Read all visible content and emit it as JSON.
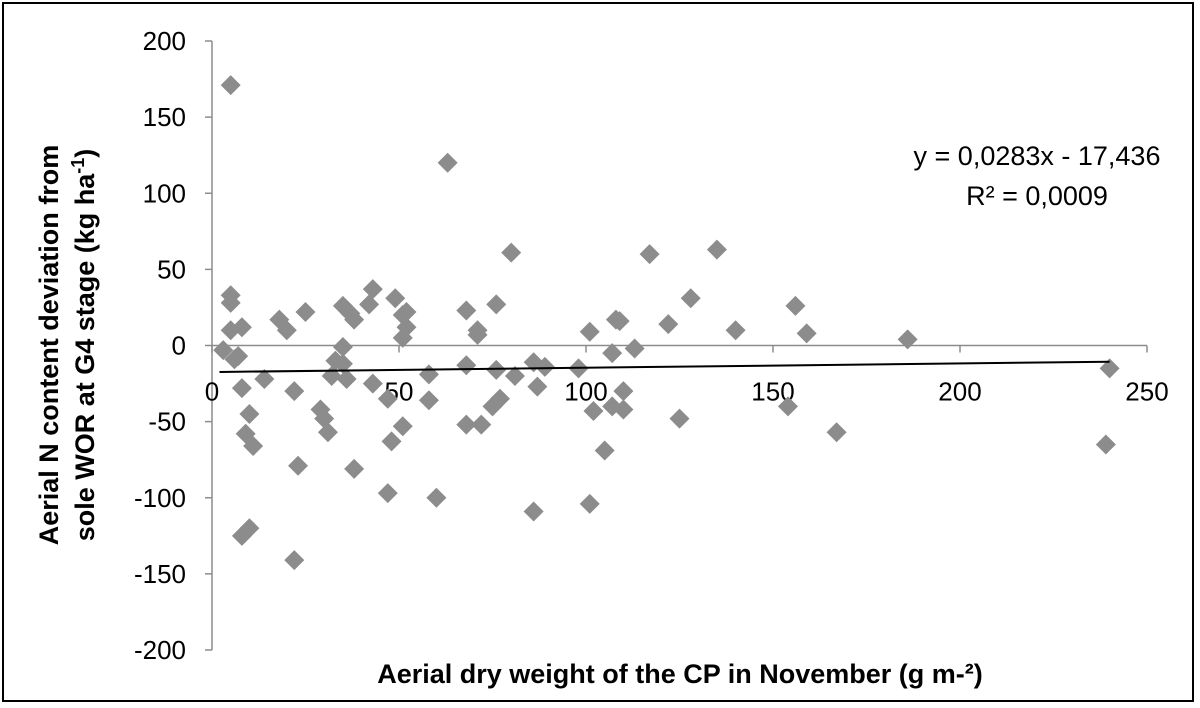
{
  "chart_data": {
    "type": "scatter",
    "title": "",
    "xlabel": "Aerial dry weight of the CP in November (g m-²)",
    "ylabel_line1": "Aerial N content deviation from",
    "ylabel_line2_prefix": "sole WOR at G4 stage (kg ha",
    "ylabel_line2_sup": "-1",
    "ylabel_line2_suffix": ")",
    "xlim": [
      0,
      250
    ],
    "ylim": [
      -200,
      200
    ],
    "x_ticks": [
      0,
      50,
      100,
      150,
      200,
      250
    ],
    "y_ticks": [
      200,
      150,
      100,
      50,
      0,
      -50,
      -100,
      -150,
      -200
    ],
    "x_tick_labels": [
      "0",
      "50",
      "100",
      "150",
      "200",
      "250"
    ],
    "y_tick_labels": [
      "200",
      "150",
      "100",
      "50",
      "0",
      "-50",
      "-100",
      "-150",
      "-200"
    ],
    "grid": false,
    "marker": "diamond",
    "marker_color": "#8c8c8c",
    "trendline": {
      "type": "linear",
      "slope": 0.0283,
      "intercept": -17.436,
      "x_range": [
        2,
        240
      ],
      "color": "#000000",
      "equation_text": "y = 0,0283x - 17,436",
      "r2_text": "R² = 0,0009"
    },
    "points": [
      [
        5,
        171
      ],
      [
        63,
        120
      ],
      [
        135,
        63
      ],
      [
        80,
        61
      ],
      [
        117,
        60
      ],
      [
        156,
        26
      ],
      [
        128,
        31
      ],
      [
        122,
        14
      ],
      [
        140,
        10
      ],
      [
        159,
        8
      ],
      [
        186,
        4
      ],
      [
        101,
        9
      ],
      [
        108,
        17
      ],
      [
        109,
        16
      ],
      [
        113,
        -2
      ],
      [
        107,
        -5
      ],
      [
        5,
        33
      ],
      [
        5,
        28
      ],
      [
        5,
        10
      ],
      [
        8,
        12
      ],
      [
        3,
        -3
      ],
      [
        6,
        -9
      ],
      [
        7,
        -7
      ],
      [
        18,
        17
      ],
      [
        20,
        10
      ],
      [
        25,
        22
      ],
      [
        35,
        26
      ],
      [
        37,
        21
      ],
      [
        38,
        17
      ],
      [
        42,
        27
      ],
      [
        43,
        37
      ],
      [
        49,
        31
      ],
      [
        51,
        20
      ],
      [
        52,
        22
      ],
      [
        52,
        12
      ],
      [
        51,
        5
      ],
      [
        35,
        -1
      ],
      [
        33,
        -10
      ],
      [
        35,
        -12
      ],
      [
        8,
        -28
      ],
      [
        10,
        -45
      ],
      [
        9,
        -58
      ],
      [
        11,
        -66
      ],
      [
        8,
        -125
      ],
      [
        10,
        -120
      ],
      [
        14,
        -22
      ],
      [
        22,
        -30
      ],
      [
        23,
        -79
      ],
      [
        22,
        -141
      ],
      [
        29,
        -42
      ],
      [
        30,
        -48
      ],
      [
        31,
        -57
      ],
      [
        32,
        -20
      ],
      [
        36,
        -22
      ],
      [
        38,
        -81
      ],
      [
        43,
        -25
      ],
      [
        47,
        -35
      ],
      [
        48,
        -63
      ],
      [
        47,
        -97
      ],
      [
        51,
        -53
      ],
      [
        58,
        -19
      ],
      [
        58,
        -36
      ],
      [
        60,
        -100
      ],
      [
        68,
        23
      ],
      [
        68,
        -13
      ],
      [
        68,
        -52
      ],
      [
        71,
        10
      ],
      [
        71,
        7
      ],
      [
        72,
        -52
      ],
      [
        75,
        -40
      ],
      [
        76,
        27
      ],
      [
        77,
        -35
      ],
      [
        76,
        -16
      ],
      [
        81,
        -20
      ],
      [
        86,
        -11
      ],
      [
        87,
        -27
      ],
      [
        89,
        -14
      ],
      [
        86,
        -109
      ],
      [
        98,
        -15
      ],
      [
        101,
        -104
      ],
      [
        102,
        -43
      ],
      [
        105,
        -69
      ],
      [
        107,
        -40
      ],
      [
        110,
        -30
      ],
      [
        110,
        -42
      ],
      [
        125,
        -48
      ],
      [
        154,
        -40
      ],
      [
        167,
        -57
      ],
      [
        240,
        -15
      ],
      [
        239,
        -65
      ]
    ]
  }
}
